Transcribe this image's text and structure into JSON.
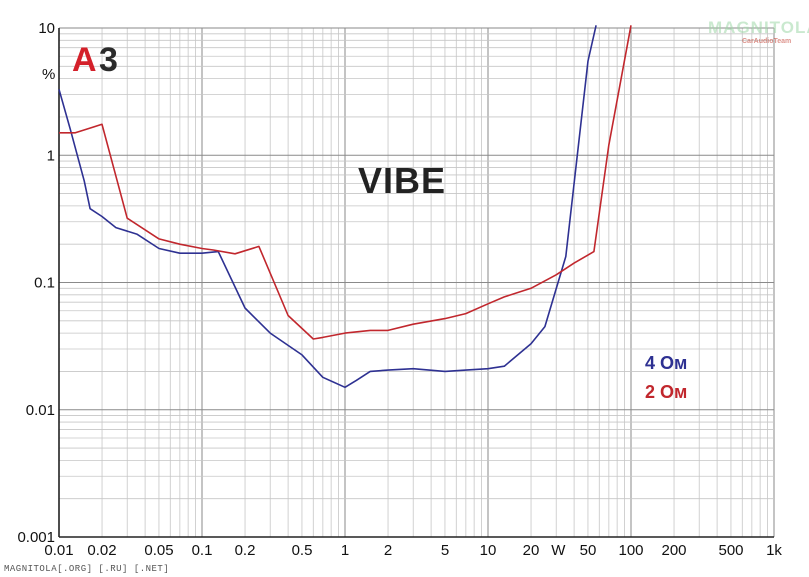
{
  "badge": {
    "a": "A",
    "three": "3"
  },
  "model_title": "VIBE",
  "unit_label": "%",
  "watermark": {
    "main": "MAGNITOLA",
    "sub": "CarAudioTeam"
  },
  "footer_credit": "MAGNITOLA[.ORG] [.RU] [.NET]",
  "chart_data": {
    "type": "line",
    "title": "",
    "xlabel": "",
    "ylabel": "%",
    "x_scale": "log",
    "y_scale": "log",
    "xlim": [
      0.01,
      1000
    ],
    "ylim": [
      0.001,
      10
    ],
    "grid": true,
    "legend_position": "right",
    "x_tick_labels": [
      {
        "value": 0.01,
        "label": "0.01"
      },
      {
        "value": 0.02,
        "label": "0.02"
      },
      {
        "value": 0.05,
        "label": "0.05"
      },
      {
        "value": 0.1,
        "label": "0.1"
      },
      {
        "value": 0.2,
        "label": "0.2"
      },
      {
        "value": 0.5,
        "label": "0.5"
      },
      {
        "value": 1,
        "label": "1"
      },
      {
        "value": 2,
        "label": "2"
      },
      {
        "value": 5,
        "label": "5"
      },
      {
        "value": 10,
        "label": "10"
      },
      {
        "value": 20,
        "label": "20"
      },
      {
        "value": 31,
        "label": "W"
      },
      {
        "value": 50,
        "label": "50"
      },
      {
        "value": 100,
        "label": "100"
      },
      {
        "value": 200,
        "label": "200"
      },
      {
        "value": 500,
        "label": "500"
      },
      {
        "value": 1000,
        "label": "1k"
      }
    ],
    "y_tick_labels": [
      {
        "value": 10,
        "label": "10"
      },
      {
        "value": 1,
        "label": "1"
      },
      {
        "value": 0.1,
        "label": "0.1"
      },
      {
        "value": 0.01,
        "label": "0.01"
      },
      {
        "value": 0.001,
        "label": "0.001"
      }
    ],
    "series": [
      {
        "name": "4 Ом",
        "color": "#2e3192",
        "points": [
          [
            0.01,
            3.3
          ],
          [
            0.012,
            1.6
          ],
          [
            0.015,
            0.63
          ],
          [
            0.0165,
            0.38
          ],
          [
            0.02,
            0.33
          ],
          [
            0.025,
            0.27
          ],
          [
            0.035,
            0.24
          ],
          [
            0.05,
            0.185
          ],
          [
            0.07,
            0.17
          ],
          [
            0.1,
            0.17
          ],
          [
            0.13,
            0.175
          ],
          [
            0.2,
            0.063
          ],
          [
            0.3,
            0.04
          ],
          [
            0.5,
            0.027
          ],
          [
            0.7,
            0.018
          ],
          [
            1.0,
            0.015
          ],
          [
            1.2,
            0.017
          ],
          [
            1.5,
            0.02
          ],
          [
            2.0,
            0.0205
          ],
          [
            3.0,
            0.021
          ],
          [
            5.0,
            0.02
          ],
          [
            7.0,
            0.0205
          ],
          [
            10.0,
            0.021
          ],
          [
            13.0,
            0.022
          ],
          [
            20.0,
            0.033
          ],
          [
            25.0,
            0.045
          ],
          [
            35.0,
            0.16
          ],
          [
            50.0,
            5.5
          ],
          [
            57.0,
            10.5
          ]
        ]
      },
      {
        "name": "2 Ом",
        "color": "#c1272d",
        "points": [
          [
            0.01,
            1.5
          ],
          [
            0.013,
            1.5
          ],
          [
            0.02,
            1.75
          ],
          [
            0.03,
            0.32
          ],
          [
            0.05,
            0.22
          ],
          [
            0.07,
            0.2
          ],
          [
            0.1,
            0.185
          ],
          [
            0.12,
            0.18
          ],
          [
            0.17,
            0.168
          ],
          [
            0.25,
            0.192
          ],
          [
            0.4,
            0.055
          ],
          [
            0.6,
            0.036
          ],
          [
            0.7,
            0.037
          ],
          [
            1.0,
            0.04
          ],
          [
            1.5,
            0.042
          ],
          [
            2.0,
            0.042
          ],
          [
            3.0,
            0.047
          ],
          [
            5.0,
            0.052
          ],
          [
            7.0,
            0.057
          ],
          [
            10.0,
            0.068
          ],
          [
            13.0,
            0.077
          ],
          [
            20.0,
            0.09
          ],
          [
            30.0,
            0.115
          ],
          [
            40.0,
            0.142
          ],
          [
            55.0,
            0.175
          ],
          [
            70.0,
            1.2
          ],
          [
            100.0,
            10.5
          ]
        ]
      }
    ]
  }
}
